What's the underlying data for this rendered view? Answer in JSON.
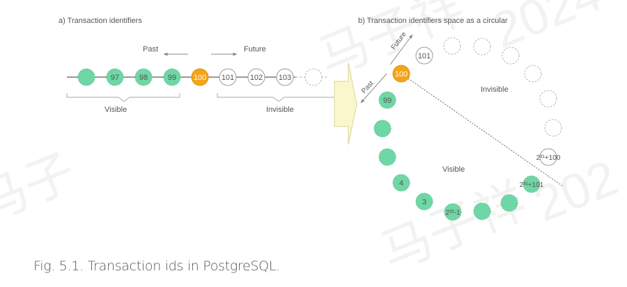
{
  "watermark": {
    "text": "马子祥 2024",
    "lines": [
      "马子祥",
      "2024",
      "马子祥",
      "202",
      "马子"
    ]
  },
  "panel_a": {
    "label": "a)  Transaction identifiers",
    "past_label": "Past",
    "future_label": "Future",
    "visible_label": "Visible",
    "invisible_label": "Invisible",
    "nodes": [
      {
        "text": "",
        "kind": "visible"
      },
      {
        "text": "97",
        "kind": "visible"
      },
      {
        "text": "98",
        "kind": "visible"
      },
      {
        "text": "99",
        "kind": "visible"
      },
      {
        "text": "100",
        "kind": "current"
      },
      {
        "text": "101",
        "kind": "future"
      },
      {
        "text": "102",
        "kind": "future"
      },
      {
        "text": "103",
        "kind": "future"
      },
      {
        "text": "",
        "kind": "dashed"
      }
    ]
  },
  "panel_b": {
    "label": "b)  Transaction identifiers space as a circular",
    "future_label": "Future",
    "past_label": "Past",
    "invisible_label": "Invisible",
    "visible_label": "Visible",
    "nodes": [
      {
        "text": "101",
        "kind": "future"
      },
      {
        "text": "",
        "kind": "dashed"
      },
      {
        "text": "",
        "kind": "dashed"
      },
      {
        "text": "",
        "kind": "dashed"
      },
      {
        "text": "",
        "kind": "dashed"
      },
      {
        "text": "",
        "kind": "dashed"
      },
      {
        "text": "",
        "kind": "dashed"
      },
      {
        "text": "2³¹+100",
        "kind": "future"
      },
      {
        "text": "2³¹+101",
        "kind": "visible"
      },
      {
        "text": "",
        "kind": "visible"
      },
      {
        "text": "",
        "kind": "visible"
      },
      {
        "text": "2³²-1",
        "kind": "visible"
      },
      {
        "text": "3",
        "kind": "visible"
      },
      {
        "text": "4",
        "kind": "visible"
      },
      {
        "text": "",
        "kind": "visible"
      },
      {
        "text": "",
        "kind": "visible"
      },
      {
        "text": "99",
        "kind": "visible"
      },
      {
        "text": "100",
        "kind": "current"
      }
    ]
  },
  "colors": {
    "visible_fill": "#6fd6a5",
    "current_fill": "#f3a417",
    "future_fill": "#ffffff",
    "outline": "#9a9a9a",
    "text": "#555555",
    "arrow_fill": "#fbf7cc",
    "arrow_stroke": "#d8d39a"
  },
  "caption": "Fig. 5.1. Transaction ids in PostgreSQL."
}
